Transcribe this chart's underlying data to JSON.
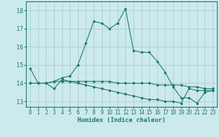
{
  "xlabel": "Humidex (Indice chaleur)",
  "ylabel": "",
  "bg_color": "#cce9ec",
  "grid_color": "#aacdd1",
  "line_color": "#1a7a6e",
  "xlim": [
    -0.5,
    23.5
  ],
  "ylim": [
    12.7,
    18.5
  ],
  "yticks": [
    13,
    14,
    15,
    16,
    17,
    18
  ],
  "xticks": [
    0,
    1,
    2,
    3,
    4,
    5,
    6,
    7,
    8,
    9,
    10,
    11,
    12,
    13,
    14,
    15,
    16,
    17,
    18,
    19,
    20,
    21,
    22,
    23
  ],
  "series1_x": [
    0,
    1,
    2,
    3,
    4,
    5,
    6,
    7,
    8,
    9,
    10,
    11,
    12,
    13,
    14,
    15,
    16,
    17,
    18,
    19,
    20,
    21,
    22,
    23
  ],
  "series1_y": [
    14.8,
    14.0,
    14.0,
    14.1,
    14.3,
    14.4,
    15.0,
    16.2,
    17.4,
    17.3,
    17.0,
    17.3,
    18.1,
    15.8,
    15.7,
    15.7,
    15.2,
    14.6,
    13.8,
    13.2,
    13.2,
    12.9,
    13.5,
    13.6
  ],
  "series2_x": [
    0,
    1,
    2,
    3,
    4,
    5,
    6,
    7,
    8,
    9,
    10,
    11,
    12,
    13,
    14,
    15,
    16,
    17,
    18,
    19,
    20,
    21,
    22,
    23
  ],
  "series2_y": [
    14.0,
    14.0,
    14.0,
    13.7,
    14.2,
    14.1,
    14.0,
    13.9,
    13.8,
    13.7,
    13.6,
    13.5,
    13.4,
    13.3,
    13.2,
    13.1,
    13.1,
    13.0,
    13.0,
    12.9,
    13.7,
    13.6,
    13.6,
    13.6
  ],
  "series3_x": [
    0,
    1,
    2,
    3,
    4,
    5,
    6,
    7,
    8,
    9,
    10,
    11,
    12,
    13,
    14,
    15,
    16,
    17,
    18,
    19,
    20,
    21,
    22,
    23
  ],
  "series3_y": [
    14.0,
    14.0,
    14.0,
    14.1,
    14.1,
    14.1,
    14.1,
    14.1,
    14.1,
    14.1,
    14.1,
    14.0,
    14.0,
    14.0,
    14.0,
    14.0,
    13.9,
    13.9,
    13.9,
    13.9,
    13.8,
    13.8,
    13.7,
    13.7
  ]
}
